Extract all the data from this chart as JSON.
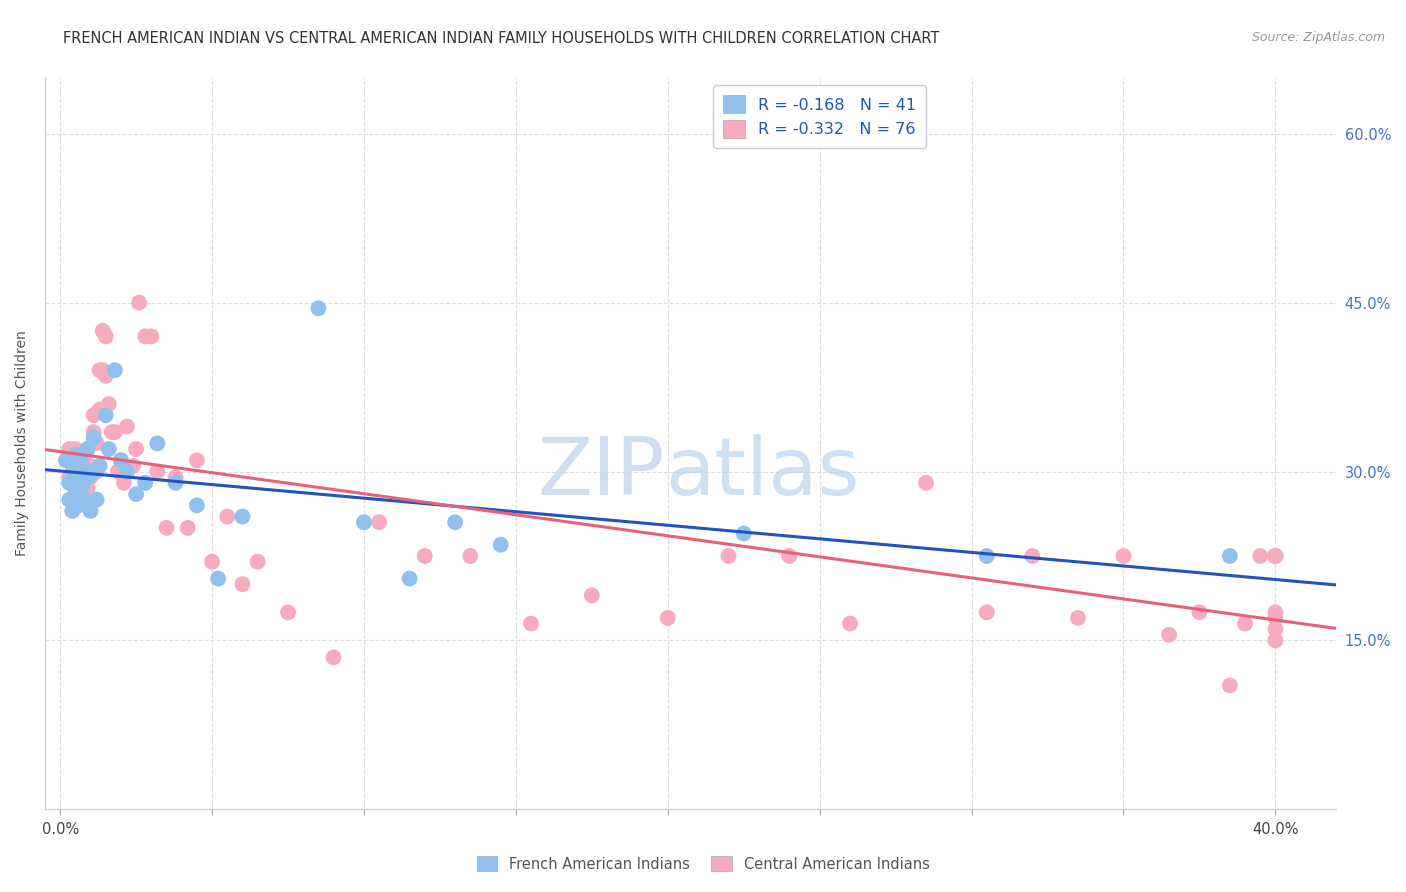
{
  "title": "FRENCH AMERICAN INDIAN VS CENTRAL AMERICAN INDIAN FAMILY HOUSEHOLDS WITH CHILDREN CORRELATION CHART",
  "source": "Source: ZipAtlas.com",
  "ylabel": "Family Households with Children",
  "legend_blue_label": "R = -0.168   N = 41",
  "legend_pink_label": "R = -0.332   N = 76",
  "legend_blue_series": "French American Indians",
  "legend_pink_series": "Central American Indians",
  "blue_color": "#92C0EC",
  "pink_color": "#F7ABBE",
  "blue_line_color": "#2255BB",
  "pink_line_color": "#E8607A",
  "watermark_zip": "ZIP",
  "watermark_atlas": "atlas",
  "blue_scatter_x": [
    0.002,
    0.003,
    0.003,
    0.004,
    0.004,
    0.005,
    0.005,
    0.005,
    0.006,
    0.006,
    0.007,
    0.007,
    0.008,
    0.008,
    0.009,
    0.009,
    0.01,
    0.011,
    0.011,
    0.012,
    0.013,
    0.015,
    0.016,
    0.018,
    0.02,
    0.022,
    0.025,
    0.028,
    0.032,
    0.038,
    0.045,
    0.052,
    0.06,
    0.085,
    0.1,
    0.115,
    0.13,
    0.145,
    0.225,
    0.305,
    0.385
  ],
  "blue_scatter_y": [
    0.31,
    0.29,
    0.275,
    0.3,
    0.265,
    0.28,
    0.295,
    0.315,
    0.27,
    0.295,
    0.285,
    0.31,
    0.275,
    0.3,
    0.295,
    0.32,
    0.265,
    0.3,
    0.33,
    0.275,
    0.305,
    0.35,
    0.32,
    0.39,
    0.31,
    0.3,
    0.28,
    0.29,
    0.325,
    0.29,
    0.27,
    0.205,
    0.26,
    0.445,
    0.255,
    0.205,
    0.255,
    0.235,
    0.245,
    0.225,
    0.225
  ],
  "pink_scatter_x": [
    0.002,
    0.003,
    0.003,
    0.004,
    0.005,
    0.005,
    0.006,
    0.006,
    0.007,
    0.007,
    0.008,
    0.008,
    0.009,
    0.009,
    0.01,
    0.01,
    0.011,
    0.011,
    0.012,
    0.012,
    0.013,
    0.013,
    0.014,
    0.014,
    0.015,
    0.015,
    0.016,
    0.017,
    0.018,
    0.019,
    0.02,
    0.021,
    0.022,
    0.024,
    0.025,
    0.026,
    0.028,
    0.03,
    0.032,
    0.035,
    0.038,
    0.042,
    0.045,
    0.05,
    0.055,
    0.06,
    0.065,
    0.075,
    0.09,
    0.105,
    0.12,
    0.135,
    0.155,
    0.175,
    0.2,
    0.22,
    0.24,
    0.26,
    0.285,
    0.305,
    0.32,
    0.335,
    0.35,
    0.365,
    0.375,
    0.385,
    0.39,
    0.395,
    0.4,
    0.4,
    0.4,
    0.4,
    0.4,
    0.4,
    0.4,
    0.4
  ],
  "pink_scatter_y": [
    0.31,
    0.295,
    0.32,
    0.295,
    0.285,
    0.32,
    0.31,
    0.295,
    0.285,
    0.315,
    0.29,
    0.315,
    0.32,
    0.285,
    0.305,
    0.295,
    0.335,
    0.35,
    0.3,
    0.325,
    0.355,
    0.39,
    0.39,
    0.425,
    0.385,
    0.42,
    0.36,
    0.335,
    0.335,
    0.3,
    0.31,
    0.29,
    0.34,
    0.305,
    0.32,
    0.45,
    0.42,
    0.42,
    0.3,
    0.25,
    0.295,
    0.25,
    0.31,
    0.22,
    0.26,
    0.2,
    0.22,
    0.175,
    0.135,
    0.255,
    0.225,
    0.225,
    0.165,
    0.19,
    0.17,
    0.225,
    0.225,
    0.165,
    0.29,
    0.175,
    0.225,
    0.17,
    0.225,
    0.155,
    0.175,
    0.11,
    0.165,
    0.225,
    0.225,
    0.17,
    0.16,
    0.225,
    0.15,
    0.175,
    0.225,
    0.225
  ],
  "xlim": [
    -0.005,
    0.42
  ],
  "ylim": [
    0.0,
    0.65
  ],
  "x_tick_positions": [
    0.0,
    0.05,
    0.1,
    0.15,
    0.2,
    0.25,
    0.3,
    0.35,
    0.4
  ],
  "y_tick_positions": [
    0.0,
    0.15,
    0.3,
    0.45,
    0.6
  ],
  "y_tick_labels": [
    "",
    "15.0%",
    "30.0%",
    "45.0%",
    "60.0%"
  ],
  "background_color": "#ffffff",
  "grid_color": "#dddddd",
  "title_fontsize": 10.5,
  "source_fontsize": 9,
  "axis_label_fontsize": 10,
  "tick_fontsize": 10.5,
  "legend_fontsize": 11.5
}
